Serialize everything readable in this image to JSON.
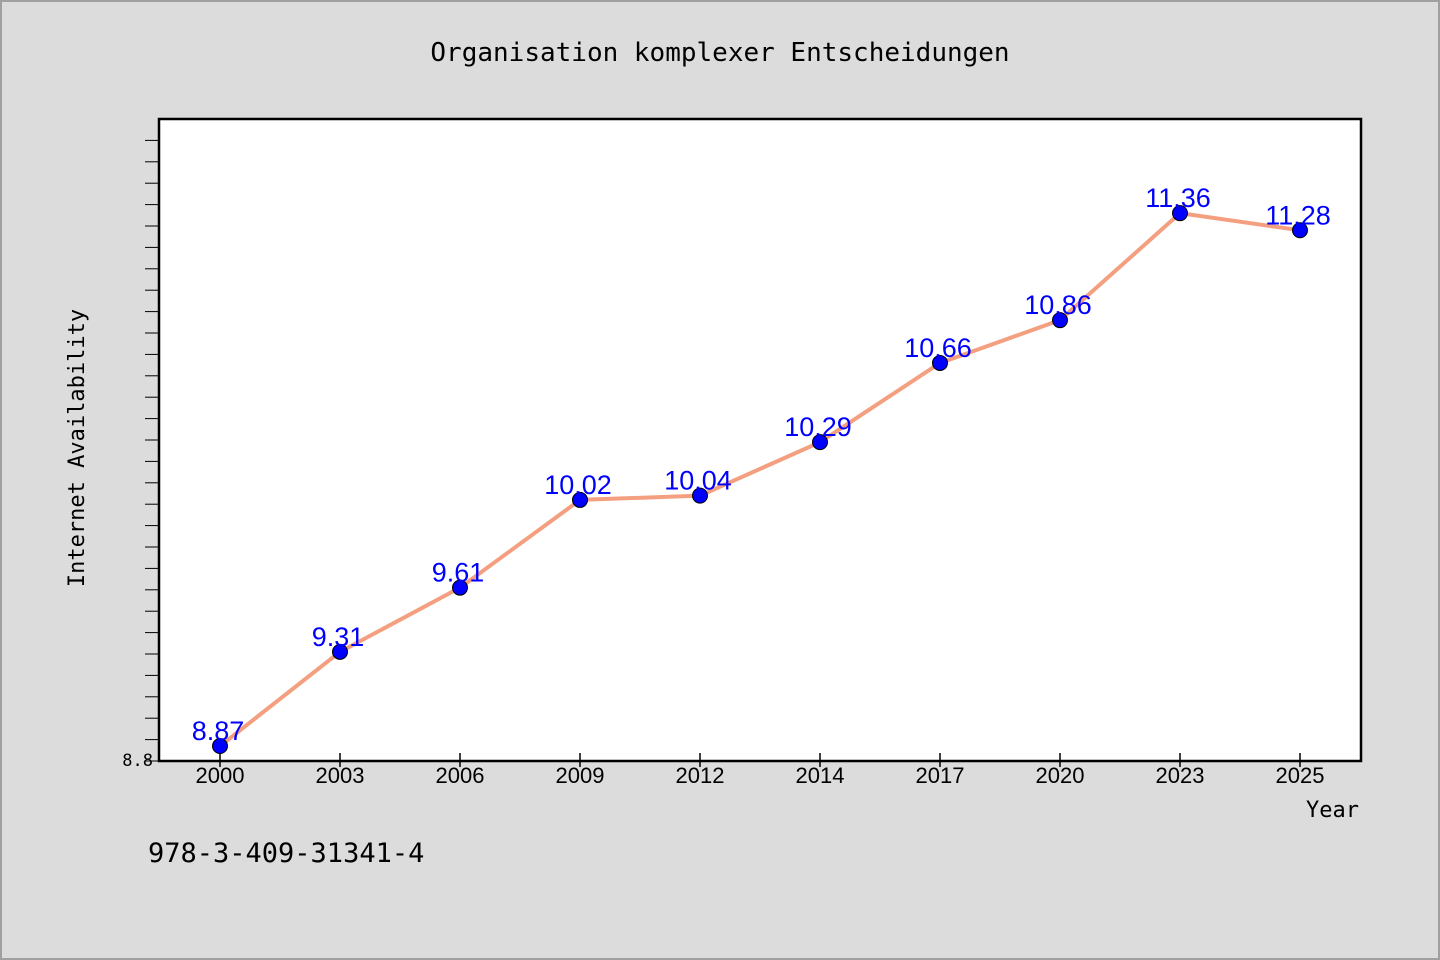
{
  "chart_data": {
    "type": "line",
    "title": "Organisation komplexer Entscheidungen",
    "xlabel": "Year",
    "ylabel": "Internet Availability",
    "categories": [
      "2000",
      "2003",
      "2006",
      "2009",
      "2012",
      "2014",
      "2017",
      "2020",
      "2023",
      "2025"
    ],
    "values": [
      8.87,
      9.31,
      9.61,
      10.02,
      10.04,
      10.29,
      10.66,
      10.86,
      11.36,
      11.28
    ],
    "data_labels": [
      "8.87",
      "9.31",
      "9.61",
      "10.02",
      "10.04",
      "10.29",
      "10.66",
      "10.86",
      "11.36",
      "11.28"
    ],
    "ylim": [
      8.8,
      11.8
    ],
    "y_tick_label": "8.8",
    "grid": false,
    "line_color": "#f4a080",
    "marker_color": "#0000ff",
    "label_color": "#0000ff"
  },
  "footer": {
    "isbn": "978-3-409-31341-4"
  }
}
